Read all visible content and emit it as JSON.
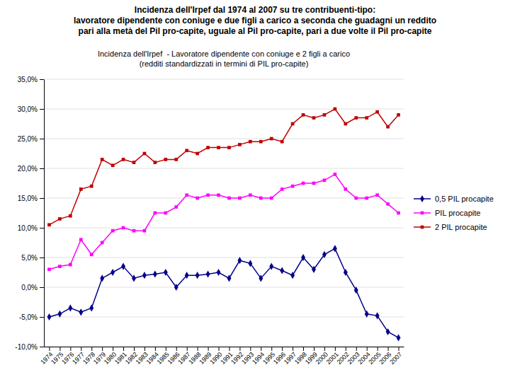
{
  "chart_data": {
    "type": "line",
    "title": "Incidenza dell'Irpef dal 1974 al 2007 su tre contribuenti-tipo:\nlavoratore dipendente con coniuge e due figli a carico a seconda che guadagni un reddito\npari alla metà del Pil pro-capite, uguale al Pil pro-capite, pari a due volte il Pil pro-capite",
    "subtitle": "Incidenza dell'Irpef  - Lavoratore dipendente con coniuge e 2 figli a carico\n(redditi standardizzati in termini di PIL pro-capite)",
    "x": [
      1974,
      1975,
      1976,
      1977,
      1978,
      1979,
      1980,
      1981,
      1982,
      1983,
      1984,
      1985,
      1986,
      1987,
      1988,
      1989,
      1990,
      1991,
      1992,
      1993,
      1994,
      1995,
      1996,
      1997,
      1998,
      1999,
      2000,
      2001,
      2002,
      2003,
      2004,
      2005,
      2006,
      2007
    ],
    "series": [
      {
        "name": "0,5 PIL procapite",
        "color": "#00008B",
        "marker": "diamond",
        "values": [
          -5.0,
          -4.5,
          -3.5,
          -4.2,
          -3.5,
          1.5,
          2.5,
          3.5,
          1.5,
          2.0,
          2.2,
          2.5,
          0.0,
          2.0,
          2.0,
          2.2,
          2.5,
          1.5,
          4.5,
          4.0,
          1.5,
          3.5,
          2.8,
          2.0,
          5.0,
          3.0,
          5.5,
          6.5,
          2.5,
          -0.5,
          -4.5,
          -4.8,
          -7.5,
          -8.5
        ]
      },
      {
        "name": "PIL procapite",
        "color": "#FF00FF",
        "marker": "square",
        "values": [
          3.0,
          3.5,
          3.8,
          8.0,
          5.5,
          7.5,
          9.5,
          10.0,
          9.5,
          9.5,
          12.5,
          12.5,
          13.5,
          15.5,
          15.0,
          15.5,
          15.5,
          15.0,
          15.0,
          15.5,
          15.0,
          15.0,
          16.5,
          17.0,
          17.5,
          17.5,
          18.0,
          19.0,
          16.5,
          15.0,
          15.0,
          15.5,
          14.0,
          12.5
        ]
      },
      {
        "name": "2 PIL procapite",
        "color": "#C00000",
        "marker": "square",
        "values": [
          10.5,
          11.5,
          12.0,
          16.5,
          17.0,
          21.5,
          20.5,
          21.5,
          21.0,
          22.5,
          21.0,
          21.5,
          21.5,
          23.0,
          22.5,
          23.5,
          23.5,
          23.5,
          24.0,
          24.5,
          24.5,
          25.0,
          24.5,
          27.5,
          29.0,
          28.5,
          29.0,
          30.0,
          27.5,
          28.5,
          28.5,
          29.5,
          27.0,
          29.0
        ]
      }
    ],
    "xlim": [
      1973.5,
      2007.5
    ],
    "xticks": [
      1974,
      1975,
      1976,
      1977,
      1978,
      1979,
      1980,
      1981,
      1982,
      1983,
      1984,
      1985,
      1986,
      1987,
      1988,
      1989,
      1990,
      1991,
      1992,
      1993,
      1994,
      1995,
      1996,
      1997,
      1998,
      1999,
      2000,
      2001,
      2002,
      2003,
      2004,
      2005,
      2006,
      2007
    ],
    "ylim": [
      -10.0,
      35.0
    ],
    "yticks": [
      {
        "value": -10.0,
        "label": "-10,0%"
      },
      {
        "value": -5.0,
        "label": "-5,0%"
      },
      {
        "value": 0.0,
        "label": "0,0%"
      },
      {
        "value": 5.0,
        "label": "5,0%"
      },
      {
        "value": 10.0,
        "label": "10,0%"
      },
      {
        "value": 15.0,
        "label": "15,0%"
      },
      {
        "value": 20.0,
        "label": "20,0%"
      },
      {
        "value": 25.0,
        "label": "25,0%"
      },
      {
        "value": 30.0,
        "label": "30,0%"
      },
      {
        "value": 35.0,
        "label": "35,0%"
      }
    ],
    "grid": true,
    "legend": "right"
  }
}
